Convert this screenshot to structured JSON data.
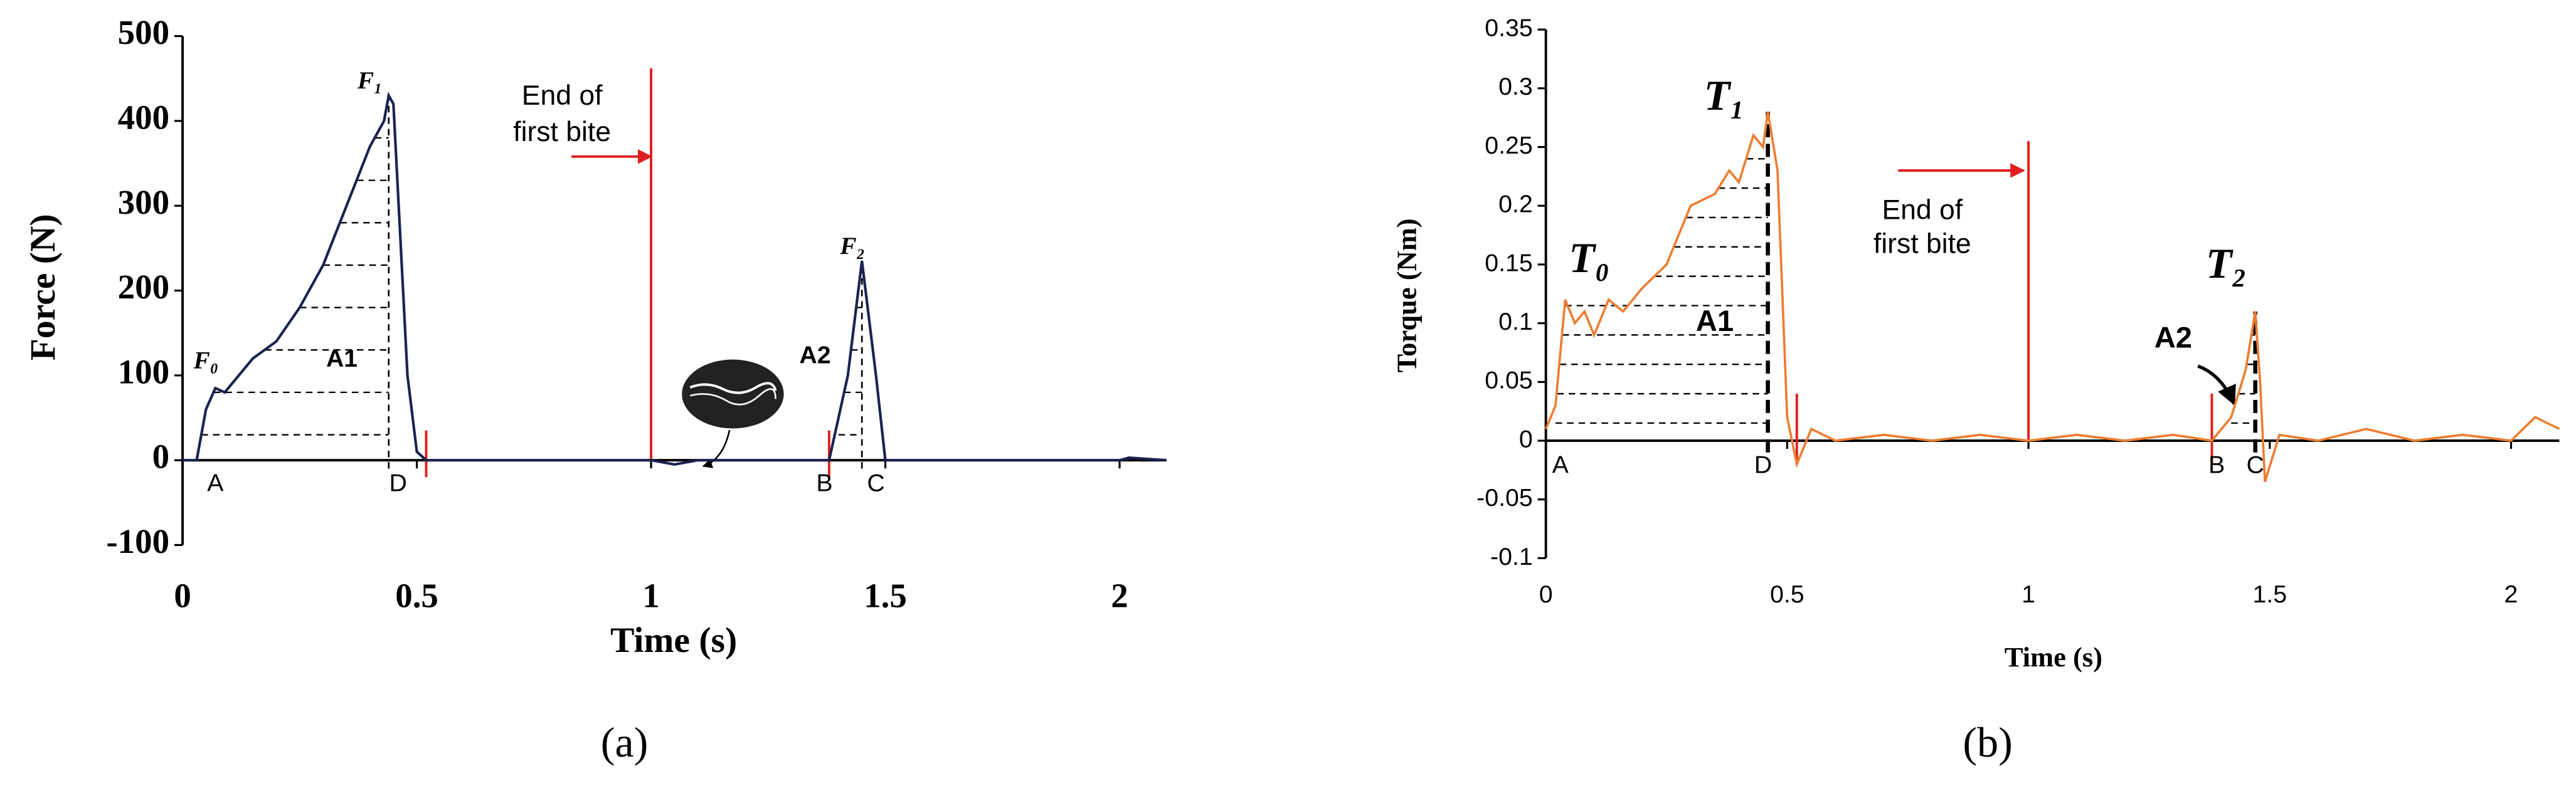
{
  "chart_data": [
    {
      "type": "line",
      "panel_label": "(a)",
      "x_label": "Time (s)",
      "y_label": "Force (N)",
      "color": "#1a2350",
      "xlim": [
        0,
        2.1
      ],
      "xticks": [
        0,
        0.5,
        1,
        1.5,
        2
      ],
      "ylim": [
        -100,
        500
      ],
      "yticks": [
        -100,
        0,
        100,
        200,
        300,
        400,
        500
      ],
      "x": [
        0,
        0.03,
        0.05,
        0.07,
        0.09,
        0.12,
        0.15,
        0.2,
        0.25,
        0.3,
        0.35,
        0.4,
        0.43,
        0.44,
        0.45,
        0.48,
        0.5,
        0.52,
        1.0,
        1.05,
        1.1,
        1.38,
        1.42,
        1.45,
        1.48,
        1.5,
        2.0,
        2.02,
        2.1
      ],
      "values": [
        0,
        0,
        60,
        85,
        80,
        100,
        120,
        140,
        180,
        230,
        300,
        370,
        400,
        430,
        420,
        100,
        10,
        0,
        0,
        -5,
        0,
        0,
        100,
        235,
        100,
        0,
        0,
        3,
        0
      ],
      "hatch": [
        [
          0.03,
          0.44
        ],
        [
          1.4,
          1.45
        ]
      ],
      "markers": [
        {
          "x": 1.0,
          "y": [
            0,
            462
          ],
          "color": "#e02020",
          "dash": false
        },
        {
          "x": 0.52,
          "y": [
            -20,
            35
          ],
          "color": "#e02020",
          "dash": false
        },
        {
          "x": 1.38,
          "y": [
            -20,
            35
          ],
          "color": "#e02020",
          "dash": false
        },
        {
          "x": 0.44,
          "y": [
            -10,
            430
          ],
          "color": "#000000",
          "dash": true
        },
        {
          "x": 1.45,
          "y": [
            -10,
            235
          ],
          "color": "#000000",
          "dash": true
        }
      ],
      "arrows": [
        {
          "x": [
            0.83,
            1.0
          ],
          "y": 358,
          "color": "#e02020"
        }
      ],
      "annotations": [
        {
          "text": "F₀",
          "x": 0.05,
          "y": 115
        },
        {
          "text": "F₁",
          "x": 0.4,
          "y": 445
        },
        {
          "text": "F₂",
          "x": 1.43,
          "y": 250
        },
        {
          "text": "A1",
          "x": 0.34,
          "y": 118
        },
        {
          "text": "A2",
          "x": 1.35,
          "y": 122
        },
        {
          "text": "A",
          "x": 0.07,
          "y": -29
        },
        {
          "text": "D",
          "x": 0.46,
          "y": -29
        },
        {
          "text": "B",
          "x": 1.37,
          "y": -29
        },
        {
          "text": "C",
          "x": 1.48,
          "y": -29
        },
        {
          "text": "End of",
          "x": 0.81,
          "y": 428
        },
        {
          "text": "first bite",
          "x": 0.81,
          "y": 385
        }
      ]
    },
    {
      "type": "line",
      "panel_label": "(b)",
      "x_label": "Time (s)",
      "y_label": "Torque (Nm)",
      "color": "#ed7d31",
      "xlim": [
        0,
        2.1
      ],
      "xticks": [
        0,
        0.5,
        1,
        1.5,
        2
      ],
      "ylim": [
        -0.1,
        0.35
      ],
      "yticks": [
        -0.1,
        -0.05,
        0,
        0.05,
        0.1,
        0.15,
        0.2,
        0.25,
        0.3,
        0.35
      ],
      "x": [
        0,
        0.02,
        0.04,
        0.06,
        0.08,
        0.1,
        0.13,
        0.16,
        0.2,
        0.25,
        0.3,
        0.35,
        0.38,
        0.4,
        0.43,
        0.45,
        0.46,
        0.48,
        0.5,
        0.52,
        0.55,
        0.6,
        0.7,
        0.8,
        0.9,
        1.0,
        1.1,
        1.2,
        1.3,
        1.38,
        1.42,
        1.45,
        1.47,
        1.48,
        1.49,
        1.52,
        1.6,
        1.7,
        1.8,
        1.9,
        2.0,
        2.05,
        2.1
      ],
      "values": [
        0.01,
        0.03,
        0.12,
        0.1,
        0.11,
        0.09,
        0.12,
        0.11,
        0.13,
        0.15,
        0.2,
        0.21,
        0.23,
        0.22,
        0.26,
        0.25,
        0.28,
        0.23,
        0.02,
        -0.02,
        0.01,
        0,
        0.005,
        0,
        0.005,
        0,
        0.005,
        0,
        0.005,
        0,
        0.02,
        0.06,
        0.11,
        0.05,
        -0.035,
        0.005,
        0,
        0.01,
        0,
        0.005,
        0,
        0.02,
        0.01
      ],
      "hatch": [
        [
          0.02,
          0.46
        ],
        [
          1.42,
          1.47
        ]
      ],
      "markers": [
        {
          "x": 1.0,
          "y": [
            0,
            0.255
          ],
          "color": "#e02020",
          "dash": false
        },
        {
          "x": 0.52,
          "y": [
            -0.02,
            0.04
          ],
          "color": "#e02020",
          "dash": false
        },
        {
          "x": 1.38,
          "y": [
            -0.02,
            0.04
          ],
          "color": "#e02020",
          "dash": false
        },
        {
          "x": 0.46,
          "y": [
            -0.01,
            0.28
          ],
          "color": "#000000",
          "dash": true
        },
        {
          "x": 1.47,
          "y": [
            -0.01,
            0.11
          ],
          "color": "#000000",
          "dash": true
        }
      ],
      "arrows": [
        {
          "x": [
            0.73,
            0.99
          ],
          "y": 0.23,
          "color": "#e02020"
        }
      ],
      "annotations": [
        {
          "text": "T₀",
          "x": 0.09,
          "y": 0.152
        },
        {
          "text": "T₁",
          "x": 0.37,
          "y": 0.29
        },
        {
          "text": "T₂",
          "x": 1.41,
          "y": 0.147
        },
        {
          "text": "A1",
          "x": 0.35,
          "y": 0.1
        },
        {
          "text": "A2",
          "x": 1.3,
          "y": 0.086
        },
        {
          "text": "A",
          "x": 0.03,
          "y": -0.022
        },
        {
          "text": "D",
          "x": 0.45,
          "y": -0.022
        },
        {
          "text": "B",
          "x": 1.39,
          "y": -0.022
        },
        {
          "text": "C",
          "x": 1.47,
          "y": -0.022
        },
        {
          "text": "End of",
          "x": 0.78,
          "y": 0.195
        },
        {
          "text": "first bite",
          "x": 0.78,
          "y": 0.166
        }
      ]
    }
  ]
}
